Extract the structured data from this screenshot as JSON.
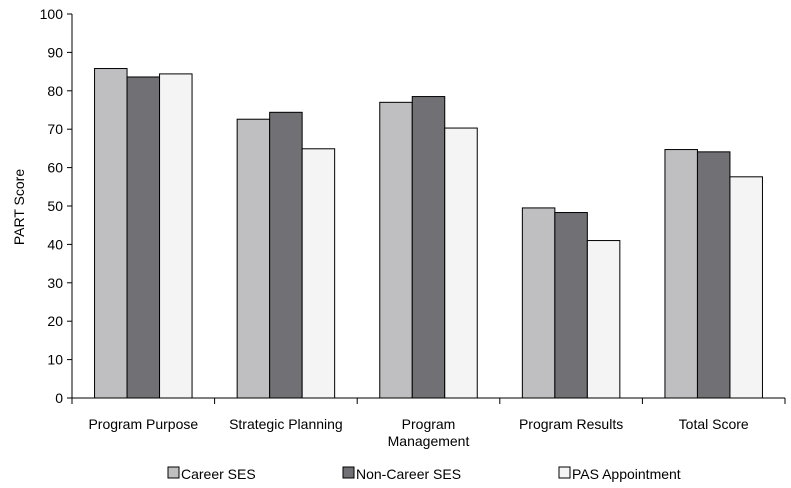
{
  "chart_data": {
    "type": "bar",
    "title": "",
    "xlabel": "",
    "ylabel": "PART Score",
    "ylim": [
      0,
      100
    ],
    "yticks": [
      0,
      10,
      20,
      30,
      40,
      50,
      60,
      70,
      80,
      90,
      100
    ],
    "categories": [
      [
        "Program Purpose"
      ],
      [
        "Strategic Planning"
      ],
      [
        "Program",
        "Management"
      ],
      [
        "Program Results"
      ],
      [
        "Total Score"
      ]
    ],
    "series": [
      {
        "name": "Career SES",
        "color": "#bfbfc1",
        "values": [
          85.8,
          72.6,
          77.0,
          49.5,
          64.7
        ]
      },
      {
        "name": "Non-Career SES",
        "color": "#707075",
        "values": [
          83.6,
          74.4,
          78.5,
          48.3,
          64.1
        ]
      },
      {
        "name": "PAS Appointment",
        "color": "#f4f4f4",
        "values": [
          84.4,
          64.9,
          70.3,
          41.0,
          57.6
        ]
      }
    ],
    "legend": "bottom",
    "grid": false
  }
}
